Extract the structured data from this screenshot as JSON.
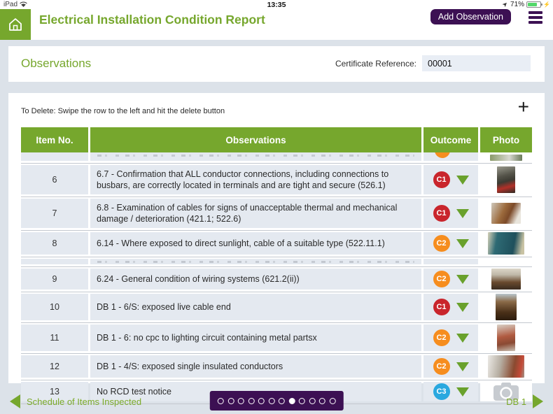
{
  "status_bar": {
    "carrier": "iPad",
    "time": "13:35",
    "battery_percent": "71%"
  },
  "header": {
    "title": "Electrical Installation Condition Report",
    "add_button_label": "Add Observation"
  },
  "observations_card": {
    "title": "Observations",
    "certificate_label": "Certificate Reference:",
    "certificate_value": "00001"
  },
  "table_card": {
    "delete_hint": "To Delete: Swipe the row to the left and hit the delete button",
    "columns": {
      "item": "Item No.",
      "observations": "Observations",
      "outcome": "Outcome",
      "photo": "Photo"
    },
    "rows": [
      {
        "item": "",
        "text": "",
        "outcome": "",
        "clipped": true
      },
      {
        "item": "6",
        "text": "6.7 - Confirmation that ALL conductor connections, including connections to busbars, are correctly located in terminals and are tight and secure (526.1)",
        "outcome": "C1",
        "outcome_color": "#c9252c",
        "photo": "image",
        "photo_css": "linear-gradient(165deg,#9a9a8e 0%,#55544a 35%,#3c3b33 55%,#b23028 75%,#2e2d26 100%)"
      },
      {
        "item": "7",
        "text": "6.8 - Examination of cables for signs of unacceptable thermal and mechanical damage / deterioration (421.1; 522.6)",
        "outcome": "C1",
        "outcome_color": "#c9252c",
        "photo": "image",
        "photo_css": "linear-gradient(115deg,#cfc8bb 0%,#9c6a3c 40%,#7c4a28 60%,#e9e5dc 85%)"
      },
      {
        "item": "8",
        "text": "6.14 - Where exposed to direct sunlight, cable of a suitable type (522.11.1)",
        "outcome": "C2",
        "outcome_color": "#f68d1e",
        "photo": "image",
        "photo_css": "linear-gradient(100deg,#d8d2b8 0%,#2e6a74 25%,#1f505c 70%,#c9c3a4 92%)"
      },
      {
        "item": "",
        "text": "",
        "outcome": "",
        "clipped": true
      },
      {
        "item": "9",
        "text": "6.24 - General condition of wiring systems (621.2(ii))",
        "outcome": "C2",
        "outcome_color": "#f68d1e",
        "photo": "image",
        "photo_css": "linear-gradient(180deg,#dcd6c8 0%,#bfb8a8 30%,#6a4a2e 65%,#3a2c20 100%)"
      },
      {
        "item": "10",
        "text": "DB 1 - 6/S: exposed live cable end",
        "outcome": "C1",
        "outcome_color": "#c9252c",
        "photo": "image",
        "photo_css": "linear-gradient(180deg,#b9c6ce 0%,#8a6a48 30%,#4a3018 70%,#2c1c0e 100%)"
      },
      {
        "item": "11",
        "text": "DB 1 - 6: no cpc to lighting circuit containing metal partsx",
        "outcome": "C2",
        "outcome_color": "#f68d1e",
        "photo": "image",
        "photo_css": "linear-gradient(170deg,#d9d1c7 0%,#b05a40 45%,#8a4a34 70%,#c9bfb2 100%)"
      },
      {
        "item": "12",
        "text": "DB 1 - 4/S: exposed single insulated conductors",
        "outcome": "C2",
        "outcome_color": "#f68d1e",
        "photo": "image",
        "photo_css": "linear-gradient(100deg,#eceae6 0%,#b6aea2 35%,#8a4a30 70%,#c44a38 88%,#9c9488 100%)"
      },
      {
        "item": "13",
        "text": "No RCD test notice",
        "outcome": "C3",
        "outcome_color": "#2aa8df",
        "photo": "camera-icon"
      }
    ]
  },
  "footer": {
    "left_label": "Schedule of Items Inspected",
    "right_label": "DB 1",
    "pager": {
      "count": 12,
      "active": 8
    }
  },
  "colors": {
    "green": "#76a72d",
    "purple": "#3c1053",
    "c1_red": "#c9252c",
    "c2_orange": "#f68d1e",
    "c3_blue": "#2aa8df",
    "triangle_green": "#69a12c",
    "page_bg": "#dce2e9",
    "row_panel": "#e4e9f0"
  }
}
